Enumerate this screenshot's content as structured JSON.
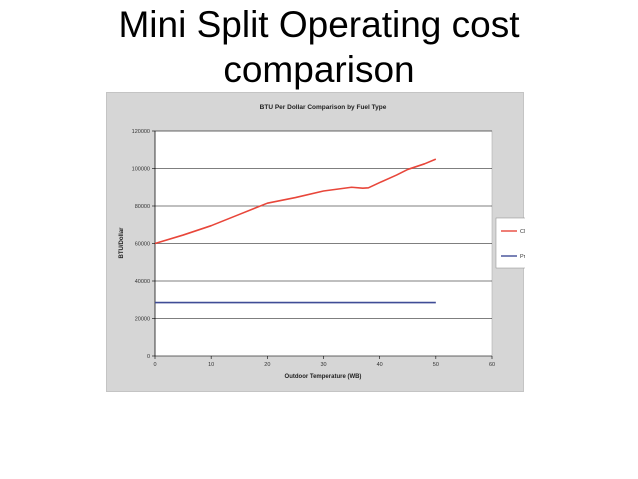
{
  "slide": {
    "title_line1": "Mini Split Operating cost",
    "title_line2": "comparison"
  },
  "chart_data": {
    "type": "line",
    "title": "BTU Per Dollar Comparison by Fuel Type",
    "xlabel": "Outdoor Temperature (WB)",
    "ylabel": "BTU/Dollar",
    "xlim": [
      0,
      60
    ],
    "ylim": [
      0,
      120000
    ],
    "xticks": [
      "0",
      "10",
      "20",
      "30",
      "40",
      "50",
      "60"
    ],
    "yticks": [
      "0",
      "20000",
      "40000",
      "60000",
      "80000",
      "100000",
      "120000"
    ],
    "grid": "horizontal",
    "legend_position": "right",
    "series": [
      {
        "name": "CM",
        "color": "#e8463a",
        "x": [
          0,
          5,
          10,
          15,
          20,
          25,
          30,
          35,
          37,
          38,
          40,
          43,
          45,
          48,
          50
        ],
        "y": [
          60000,
          64500,
          69500,
          75500,
          81500,
          84500,
          88000,
          90000,
          89500,
          89700,
          92500,
          96500,
          99500,
          102500,
          105000
        ]
      },
      {
        "name": "Propane",
        "color": "#3f4c96",
        "x": [
          0,
          50
        ],
        "y": [
          28500,
          28500
        ]
      }
    ]
  }
}
